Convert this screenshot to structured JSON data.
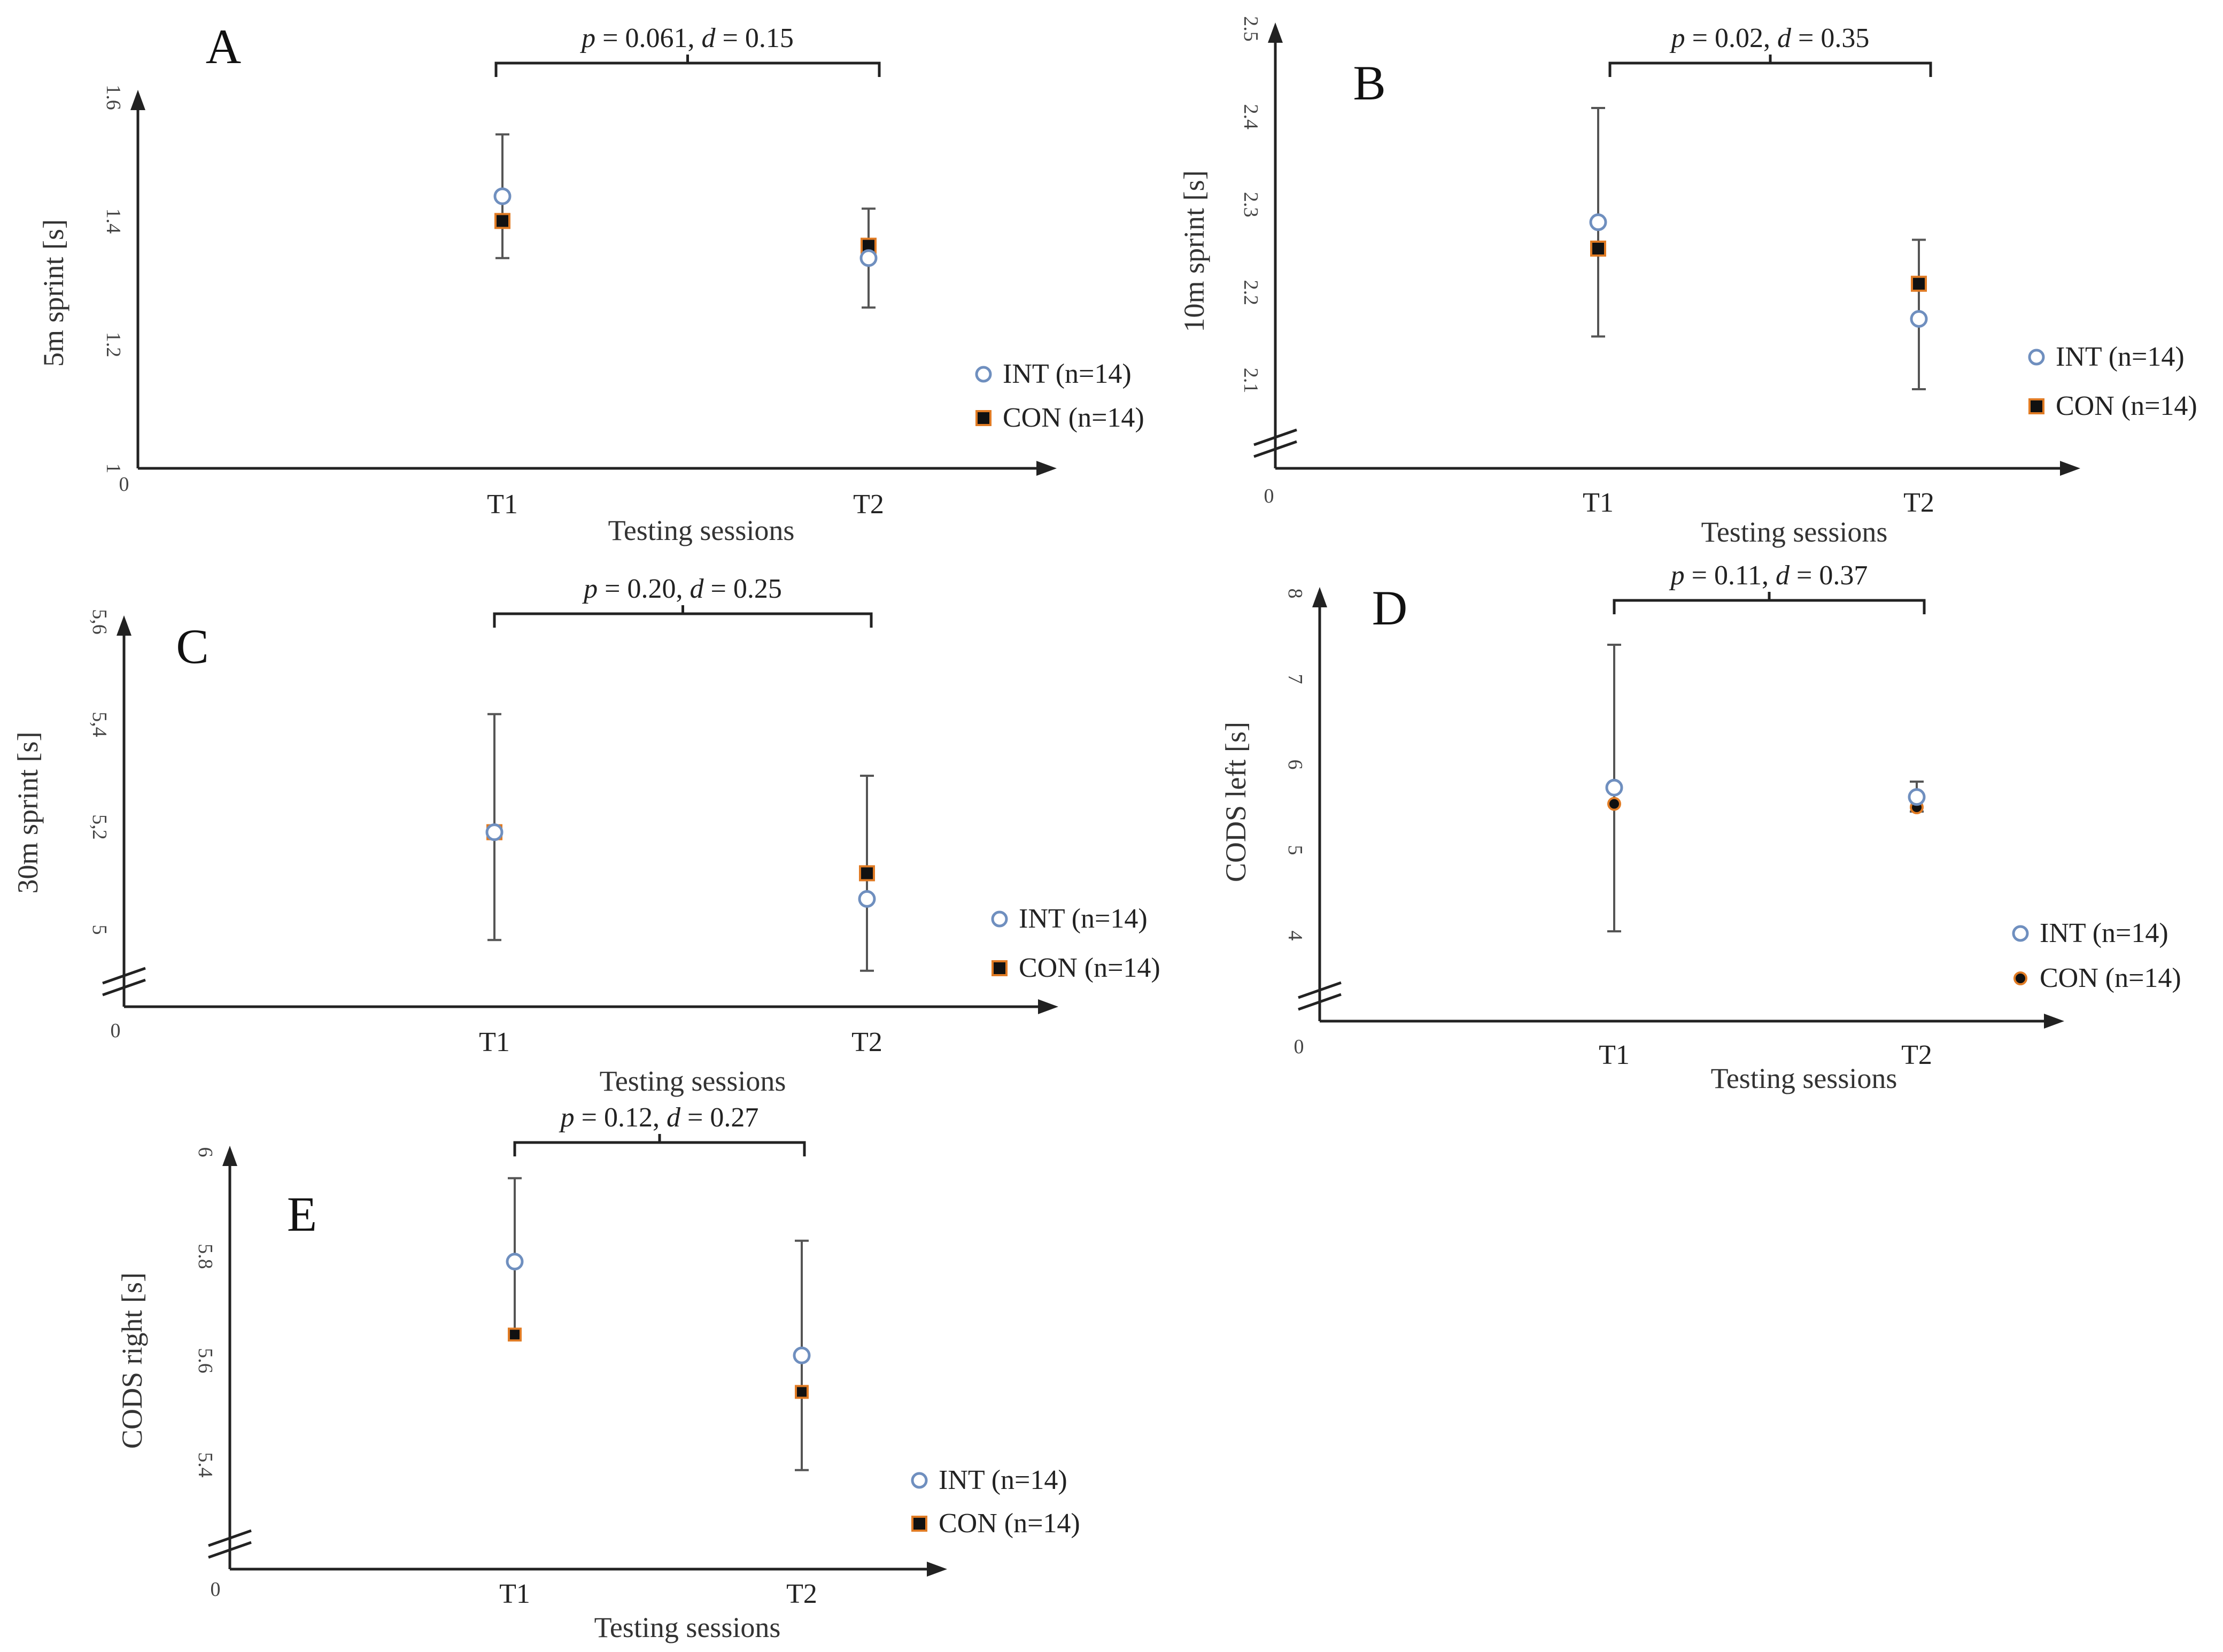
{
  "legend": [
    {
      "label": "INT (n=14)",
      "marker": "open-circle",
      "color": "#6f8fbf"
    },
    {
      "label": "CON (n=14)",
      "marker": "filled-square",
      "color": "#e07b24"
    }
  ],
  "chart_data": [
    {
      "panel": "A",
      "type": "scatter",
      "categories": [
        "T1",
        "T2"
      ],
      "xlabel": "Testing sessions",
      "ylabel": "5m sprint [s]",
      "origin_label": "0",
      "yticks": [
        "1",
        "1.2",
        "1.4",
        "1.6"
      ],
      "ylim": [
        1,
        1.6
      ],
      "axis_break": false,
      "series": [
        {
          "name": "INT (n=14)",
          "values": [
            1.44,
            1.34
          ]
        },
        {
          "name": "CON (n=14)",
          "values": [
            1.4,
            1.36
          ]
        }
      ],
      "error_bars": [
        [
          1.34,
          1.54
        ],
        [
          1.26,
          1.42
        ]
      ],
      "annotation": {
        "p_label": "p",
        "p_value": " = 0.061,",
        "d_label": "d",
        "d_value": " = 0.15"
      }
    },
    {
      "panel": "B",
      "type": "scatter",
      "categories": [
        "T1",
        "T2"
      ],
      "xlabel": "Testing sessions",
      "ylabel": "10m sprint [s]",
      "origin_label": "0",
      "yticks": [
        "2.1",
        "2.2",
        "2.3",
        "2.4",
        "2.5"
      ],
      "ylim": [
        2.0,
        2.5
      ],
      "axis_break": true,
      "series": [
        {
          "name": "INT (n=14)",
          "values": [
            2.28,
            2.17
          ]
        },
        {
          "name": "CON (n=14)",
          "values": [
            2.25,
            2.21
          ]
        }
      ],
      "error_bars": [
        [
          2.15,
          2.41
        ],
        [
          2.09,
          2.26
        ]
      ],
      "annotation": {
        "p_label": "p",
        "p_value": " = 0.02,",
        "d_label": "d",
        "d_value": " = 0.35"
      }
    },
    {
      "panel": "C",
      "type": "scatter",
      "categories": [
        "T1",
        "T2"
      ],
      "xlabel": "Testing sessions",
      "ylabel": "30m sprint [s]",
      "origin_label": "0",
      "yticks": [
        "5",
        "5,2",
        "5,4",
        "5,6"
      ],
      "ylim": [
        4.85,
        5.6
      ],
      "axis_break": true,
      "series": [
        {
          "name": "INT (n=14)",
          "values": [
            5.19,
            5.06
          ]
        },
        {
          "name": "CON (n=14)",
          "values": [
            5.19,
            5.11
          ]
        }
      ],
      "error_bars": [
        [
          4.98,
          5.42
        ],
        [
          4.92,
          5.3
        ]
      ],
      "annotation": {
        "p_label": "p",
        "p_value": " = 0.20,",
        "d_label": "d",
        "d_value": " = 0.25"
      }
    },
    {
      "panel": "D",
      "type": "scatter",
      "categories": [
        "T1",
        "T2"
      ],
      "xlabel": "Testing sessions",
      "ylabel": "CODS left [s]",
      "origin_label": "0",
      "yticks": [
        "4",
        "5",
        "6",
        "7",
        "8"
      ],
      "ylim": [
        3.0,
        8.0
      ],
      "axis_break": true,
      "series": [
        {
          "name": "INT (n=14)",
          "values": [
            5.73,
            5.62
          ]
        },
        {
          "name": "CON (n=14)",
          "values": [
            5.54,
            5.5
          ]
        }
      ],
      "error_bars": [
        [
          4.05,
          7.4
        ],
        [
          5.45,
          5.8
        ]
      ],
      "annotation": {
        "p_label": "p",
        "p_value": " = 0.11,",
        "d_label": "d",
        "d_value": " = 0.37"
      }
    },
    {
      "panel": "E",
      "type": "scatter",
      "categories": [
        "T1",
        "T2"
      ],
      "xlabel": "Testing sessions",
      "ylabel": "CODS right [s]",
      "origin_label": "0",
      "yticks": [
        "5.4",
        "5.6",
        "5.8",
        "6"
      ],
      "ylim": [
        5.2,
        6.0
      ],
      "axis_break": true,
      "series": [
        {
          "name": "INT (n=14)",
          "values": [
            5.79,
            5.61
          ]
        },
        {
          "name": "CON (n=14)",
          "values": [
            5.65,
            5.54
          ]
        }
      ],
      "error_bars": [
        [
          5.64,
          5.95
        ],
        [
          5.39,
          5.83
        ]
      ],
      "annotation": {
        "p_label": "p",
        "p_value": " = 0.12,",
        "d_label": "d",
        "d_value": " = 0.27"
      }
    }
  ]
}
